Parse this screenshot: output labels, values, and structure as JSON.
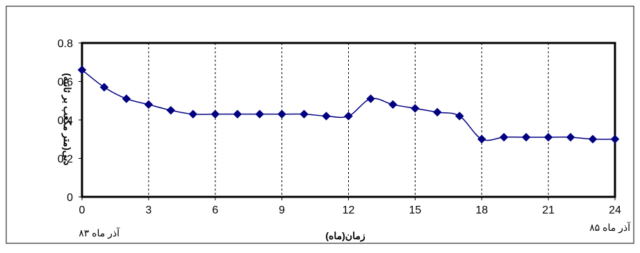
{
  "chart_data": {
    "type": "line",
    "xlabel": "زمان(ماه)",
    "ylabel": "دبی(متر مکعب بر ثانیه)",
    "xlim": [
      0,
      24
    ],
    "ylim": [
      0,
      0.8
    ],
    "x_ticks": [
      0,
      3,
      6,
      9,
      12,
      15,
      18,
      21,
      24
    ],
    "y_ticks": [
      0,
      0.2,
      0.4,
      0.6,
      0.8
    ],
    "x_tick_labels": [
      "0",
      "3",
      "6",
      "9",
      "12",
      "15",
      "18",
      "21",
      "24"
    ],
    "y_tick_labels": [
      "0",
      "0.2",
      "0.4",
      "0.6",
      "0.8"
    ],
    "grid": "vertical dashed",
    "legend": "none",
    "annotations": {
      "start_label": "آذر ماه ۸۳",
      "end_label": "آذر ماه ۸۵"
    },
    "series": [
      {
        "marker": "diamond",
        "color": "#000080",
        "x": [
          0,
          1,
          2,
          3,
          4,
          5,
          6,
          7,
          8,
          9,
          10,
          11,
          12,
          13,
          14,
          15,
          16,
          17,
          18,
          19,
          20,
          21,
          22,
          23,
          24
        ],
        "y": [
          0.66,
          0.57,
          0.51,
          0.48,
          0.45,
          0.43,
          0.43,
          0.43,
          0.43,
          0.43,
          0.43,
          0.42,
          0.42,
          0.51,
          0.48,
          0.46,
          0.44,
          0.42,
          0.3,
          0.31,
          0.31,
          0.31,
          0.31,
          0.3,
          0.3
        ]
      }
    ]
  }
}
